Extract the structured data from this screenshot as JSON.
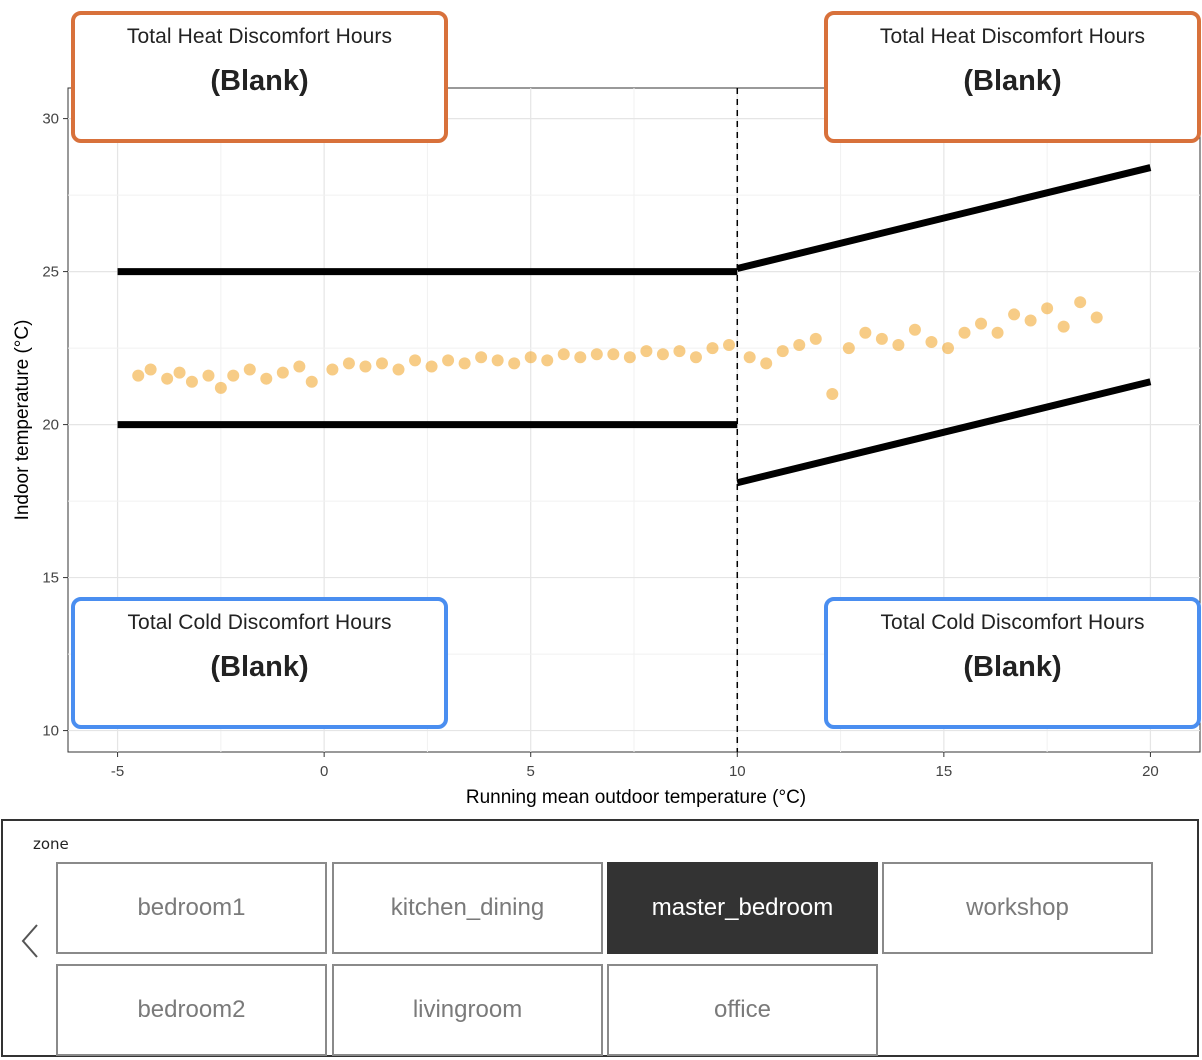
{
  "cards": {
    "heat_left": {
      "title": "Total Heat Discomfort Hours",
      "value": "(Blank)"
    },
    "heat_right": {
      "title": "Total Heat Discomfort Hours",
      "value": "(Blank)"
    },
    "cold_left": {
      "title": "Total Cold Discomfort Hours",
      "value": "(Blank)"
    },
    "cold_right": {
      "title": "Total Cold Discomfort Hours",
      "value": "(Blank)"
    }
  },
  "colors": {
    "heat_border": "#d8713b",
    "cold_border": "#4a8ef0",
    "points": "#f0a323",
    "selected_chip": "#333333"
  },
  "slicer": {
    "label": "zone",
    "items": [
      "bedroom1",
      "kitchen_dining",
      "master_bedroom",
      "workshop",
      "bedroom2",
      "livingroom",
      "office"
    ],
    "selected": "master_bedroom",
    "prev_icon": "chevron-left-icon"
  },
  "chart_data": {
    "type": "scatter",
    "xlabel": "Running mean outdoor  temperature (°C)",
    "ylabel": "Indoor temperature (°C)",
    "xlim": [
      -6.2,
      21.2
    ],
    "ylim": [
      9.3,
      31
    ],
    "xticks": [
      -5,
      0,
      5,
      10,
      15,
      20
    ],
    "yticks": [
      10,
      15,
      20,
      25,
      30
    ],
    "grid": true,
    "vline": {
      "x": 10,
      "style": "dashed"
    },
    "comfort_lines": [
      {
        "name": "upper-static",
        "x": [
          -5,
          10
        ],
        "y": [
          25,
          25
        ]
      },
      {
        "name": "lower-static",
        "x": [
          -5,
          10
        ],
        "y": [
          20,
          20
        ]
      },
      {
        "name": "upper-adaptive",
        "x": [
          10,
          20
        ],
        "y": [
          25.1,
          28.4
        ]
      },
      {
        "name": "lower-adaptive",
        "x": [
          10,
          20
        ],
        "y": [
          18.1,
          21.4
        ]
      }
    ],
    "points": [
      [
        -4.5,
        21.6
      ],
      [
        -4.2,
        21.8
      ],
      [
        -3.8,
        21.5
      ],
      [
        -3.5,
        21.7
      ],
      [
        -3.2,
        21.4
      ],
      [
        -2.8,
        21.6
      ],
      [
        -2.5,
        21.2
      ],
      [
        -2.2,
        21.6
      ],
      [
        -1.8,
        21.8
      ],
      [
        -1.4,
        21.5
      ],
      [
        -1.0,
        21.7
      ],
      [
        -0.6,
        21.9
      ],
      [
        -0.3,
        21.4
      ],
      [
        0.2,
        21.8
      ],
      [
        0.6,
        22.0
      ],
      [
        1.0,
        21.9
      ],
      [
        1.4,
        22.0
      ],
      [
        1.8,
        21.8
      ],
      [
        2.2,
        22.1
      ],
      [
        2.6,
        21.9
      ],
      [
        3.0,
        22.1
      ],
      [
        3.4,
        22.0
      ],
      [
        3.8,
        22.2
      ],
      [
        4.2,
        22.1
      ],
      [
        4.6,
        22.0
      ],
      [
        5.0,
        22.2
      ],
      [
        5.4,
        22.1
      ],
      [
        5.8,
        22.3
      ],
      [
        6.2,
        22.2
      ],
      [
        6.6,
        22.3
      ],
      [
        7.0,
        22.3
      ],
      [
        7.4,
        22.2
      ],
      [
        7.8,
        22.4
      ],
      [
        8.2,
        22.3
      ],
      [
        8.6,
        22.4
      ],
      [
        9.0,
        22.2
      ],
      [
        9.4,
        22.5
      ],
      [
        9.8,
        22.6
      ],
      [
        10.3,
        22.2
      ],
      [
        10.7,
        22.0
      ],
      [
        11.1,
        22.4
      ],
      [
        11.5,
        22.6
      ],
      [
        11.9,
        22.8
      ],
      [
        12.3,
        21.0
      ],
      [
        12.7,
        22.5
      ],
      [
        13.1,
        23.0
      ],
      [
        13.5,
        22.8
      ],
      [
        13.9,
        22.6
      ],
      [
        14.3,
        23.1
      ],
      [
        14.7,
        22.7
      ],
      [
        15.1,
        22.5
      ],
      [
        15.5,
        23.0
      ],
      [
        15.9,
        23.3
      ],
      [
        16.3,
        23.0
      ],
      [
        16.7,
        23.6
      ],
      [
        17.1,
        23.4
      ],
      [
        17.5,
        23.8
      ],
      [
        17.9,
        23.2
      ],
      [
        18.3,
        24.0
      ],
      [
        18.7,
        23.5
      ]
    ]
  }
}
